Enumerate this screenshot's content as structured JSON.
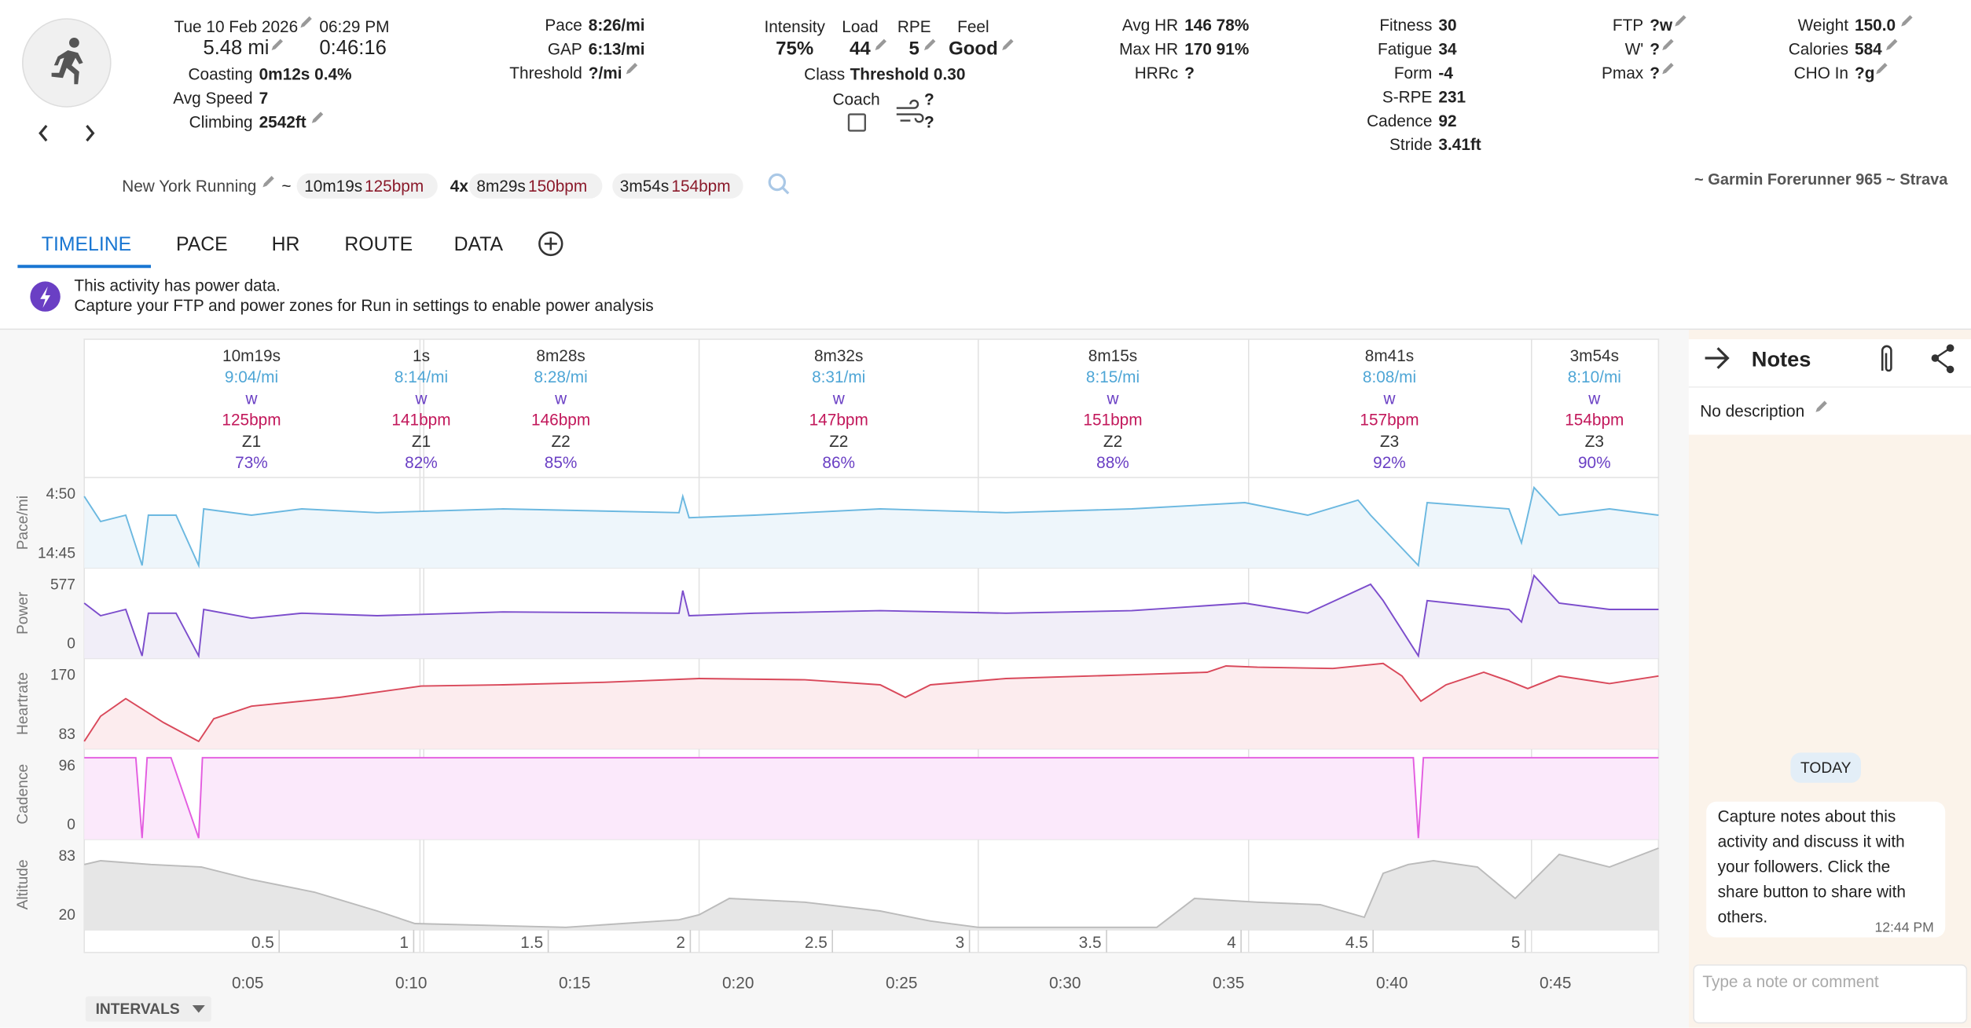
{
  "header": {
    "date": "Tue 10 Feb 2026",
    "time": "06:29 PM",
    "distance": "5.48 mi",
    "duration": "0:46:16",
    "rows": [
      {
        "label": "Coasting",
        "value": "0m12s 0.4%"
      },
      {
        "label": "Avg Speed",
        "value": "7"
      },
      {
        "label": "Climbing",
        "value": "2542ft"
      }
    ]
  },
  "stats": {
    "pace": [
      {
        "label": "Pace",
        "value": "8:26/mi"
      },
      {
        "label": "GAP",
        "value": "6:13/mi"
      },
      {
        "label": "Threshold",
        "value": "?/mi"
      }
    ],
    "hr": [
      {
        "label": "Avg HR",
        "value": "146 78%"
      },
      {
        "label": "Max HR",
        "value": "170 91%"
      },
      {
        "label": "HRRc",
        "value": "?"
      }
    ],
    "fitness": [
      {
        "label": "Fitness",
        "value": "30"
      },
      {
        "label": "Fatigue",
        "value": "34"
      },
      {
        "label": "Form",
        "value": "-4"
      },
      {
        "label": "S-RPE",
        "value": "231"
      },
      {
        "label": "Cadence",
        "value": "92"
      },
      {
        "label": "Stride",
        "value": "3.41ft"
      }
    ],
    "ftp": [
      {
        "label": "FTP",
        "value": "?w"
      },
      {
        "label": "W'",
        "value": "?"
      },
      {
        "label": "Pmax",
        "value": "?"
      }
    ],
    "weight": [
      {
        "label": "Weight",
        "value": "150.0"
      },
      {
        "label": "Calories",
        "value": "584"
      },
      {
        "label": "CHO In",
        "value": "?g"
      }
    ]
  },
  "effort": {
    "items": [
      {
        "label": "Intensity",
        "value": "75%"
      },
      {
        "label": "Load",
        "value": "44"
      },
      {
        "label": "RPE",
        "value": "5"
      },
      {
        "label": "Feel",
        "value": "Good"
      }
    ],
    "class": {
      "label": "Class",
      "value": "Threshold 0.30"
    },
    "coach": "Coach",
    "wind": [
      "?",
      "?"
    ]
  },
  "tags": {
    "name": "New York Running",
    "sep": "~",
    "first": {
      "time": "10m19s",
      "hr": "125bpm"
    },
    "reps": "4x",
    "work": {
      "time": "8m29s",
      "hr": "150bpm"
    },
    "last": {
      "time": "3m54s",
      "hr": "154bpm"
    },
    "device": "~ Garmin Forerunner 965 ~ Strava"
  },
  "tabs": [
    "TIMELINE",
    "PACE",
    "HR",
    "ROUTE",
    "DATA"
  ],
  "notice": [
    "This activity has power data.",
    "Capture your FTP and power zones for Run in settings to enable power analysis"
  ],
  "intervals": [
    [
      "10m19s",
      "9:04/mi",
      "w",
      "125bpm",
      "Z1",
      "73%"
    ],
    [
      "1s",
      "8:14/mi",
      "w",
      "141bpm",
      "Z1",
      "82%"
    ],
    [
      "8m28s",
      "8:28/mi",
      "w",
      "146bpm",
      "Z2",
      "85%"
    ],
    [
      "8m32s",
      "8:31/mi",
      "w",
      "147bpm",
      "Z2",
      "86%"
    ],
    [
      "8m15s",
      "8:15/mi",
      "w",
      "151bpm",
      "Z2",
      "88%"
    ],
    [
      "8m41s",
      "8:08/mi",
      "w",
      "157bpm",
      "Z3",
      "92%"
    ],
    [
      "3m54s",
      "8:10/mi",
      "w",
      "154bpm",
      "Z3",
      "90%"
    ]
  ],
  "panels": [
    {
      "label": "Pace/mi",
      "top": "4:50",
      "bottom": "14:45"
    },
    {
      "label": "Power",
      "top": "577",
      "bottom": "0"
    },
    {
      "label": "Heartrate",
      "top": "170",
      "bottom": "83"
    },
    {
      "label": "Cadence",
      "top": "96",
      "bottom": "0"
    },
    {
      "label": "Altitude",
      "top": "83",
      "bottom": "20"
    }
  ],
  "distance_ticks": [
    "0.5",
    "1",
    "1.5",
    "2",
    "2.5",
    "3",
    "3.5",
    "4",
    "4.5",
    "5"
  ],
  "time_ticks": [
    "0:05",
    "0:10",
    "0:15",
    "0:20",
    "0:25",
    "0:30",
    "0:35",
    "0:40",
    "0:45"
  ],
  "intervals_button": "INTERVALS",
  "notes": {
    "title": "Notes",
    "description": "No description",
    "day": "TODAY",
    "message": "Capture notes about this activity and discuss it with your followers. Click the share button to share with others.",
    "message_time": "12:44 PM",
    "placeholder": "Type a note or comment"
  }
}
